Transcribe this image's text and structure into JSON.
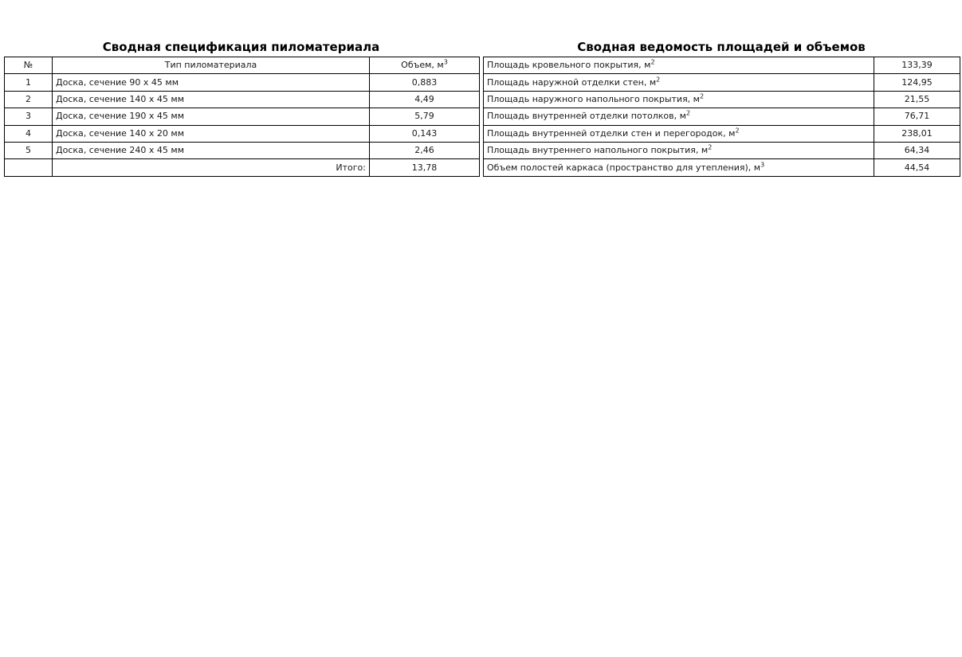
{
  "lumber": {
    "title": "Сводная спецификация пиломатериала",
    "headers": {
      "num": "№",
      "type": "Тип пиломатериала",
      "volume": "Объем, м",
      "volume_sup": "3"
    },
    "rows": [
      {
        "num": "1",
        "type": "Доска, сечение 90 х 45 мм",
        "volume": "0,883"
      },
      {
        "num": "2",
        "type": "Доска, сечение 140 х 45 мм",
        "volume": "4,49"
      },
      {
        "num": "3",
        "type": "Доска, сечение 190 х 45 мм",
        "volume": "5,79"
      },
      {
        "num": "4",
        "type": "Доска, сечение 140 х 20 мм",
        "volume": "0,143"
      },
      {
        "num": "5",
        "type": "Доска, сечение 240 х 45 мм",
        "volume": "2,46"
      }
    ],
    "total_label": "Итого:",
    "total_value": "13,78"
  },
  "areas": {
    "title": "Сводная ведомость площадей и объемов",
    "rows": [
      {
        "label": "Площадь кровельного покрытия, м",
        "sup": "2",
        "value": "133,39"
      },
      {
        "label": "Площадь наружной отделки стен, м",
        "sup": "2",
        "value": "124,95"
      },
      {
        "label": "Площадь наружного напольного покрытия, м",
        "sup": "2",
        "value": "21,55"
      },
      {
        "label": "Площадь внутренней отделки потолков, м",
        "sup": "2",
        "value": "76,71"
      },
      {
        "label": "Площадь внутренней отделки стен и перегородок, м",
        "sup": "2",
        "value": "238,01"
      },
      {
        "label": "Площадь внутреннего напольного покрытия, м",
        "sup": "2",
        "value": "64,34"
      },
      {
        "label": "Объем полостей каркаса (пространство для утепления), м",
        "sup": "3",
        "value": "44,54"
      }
    ]
  }
}
